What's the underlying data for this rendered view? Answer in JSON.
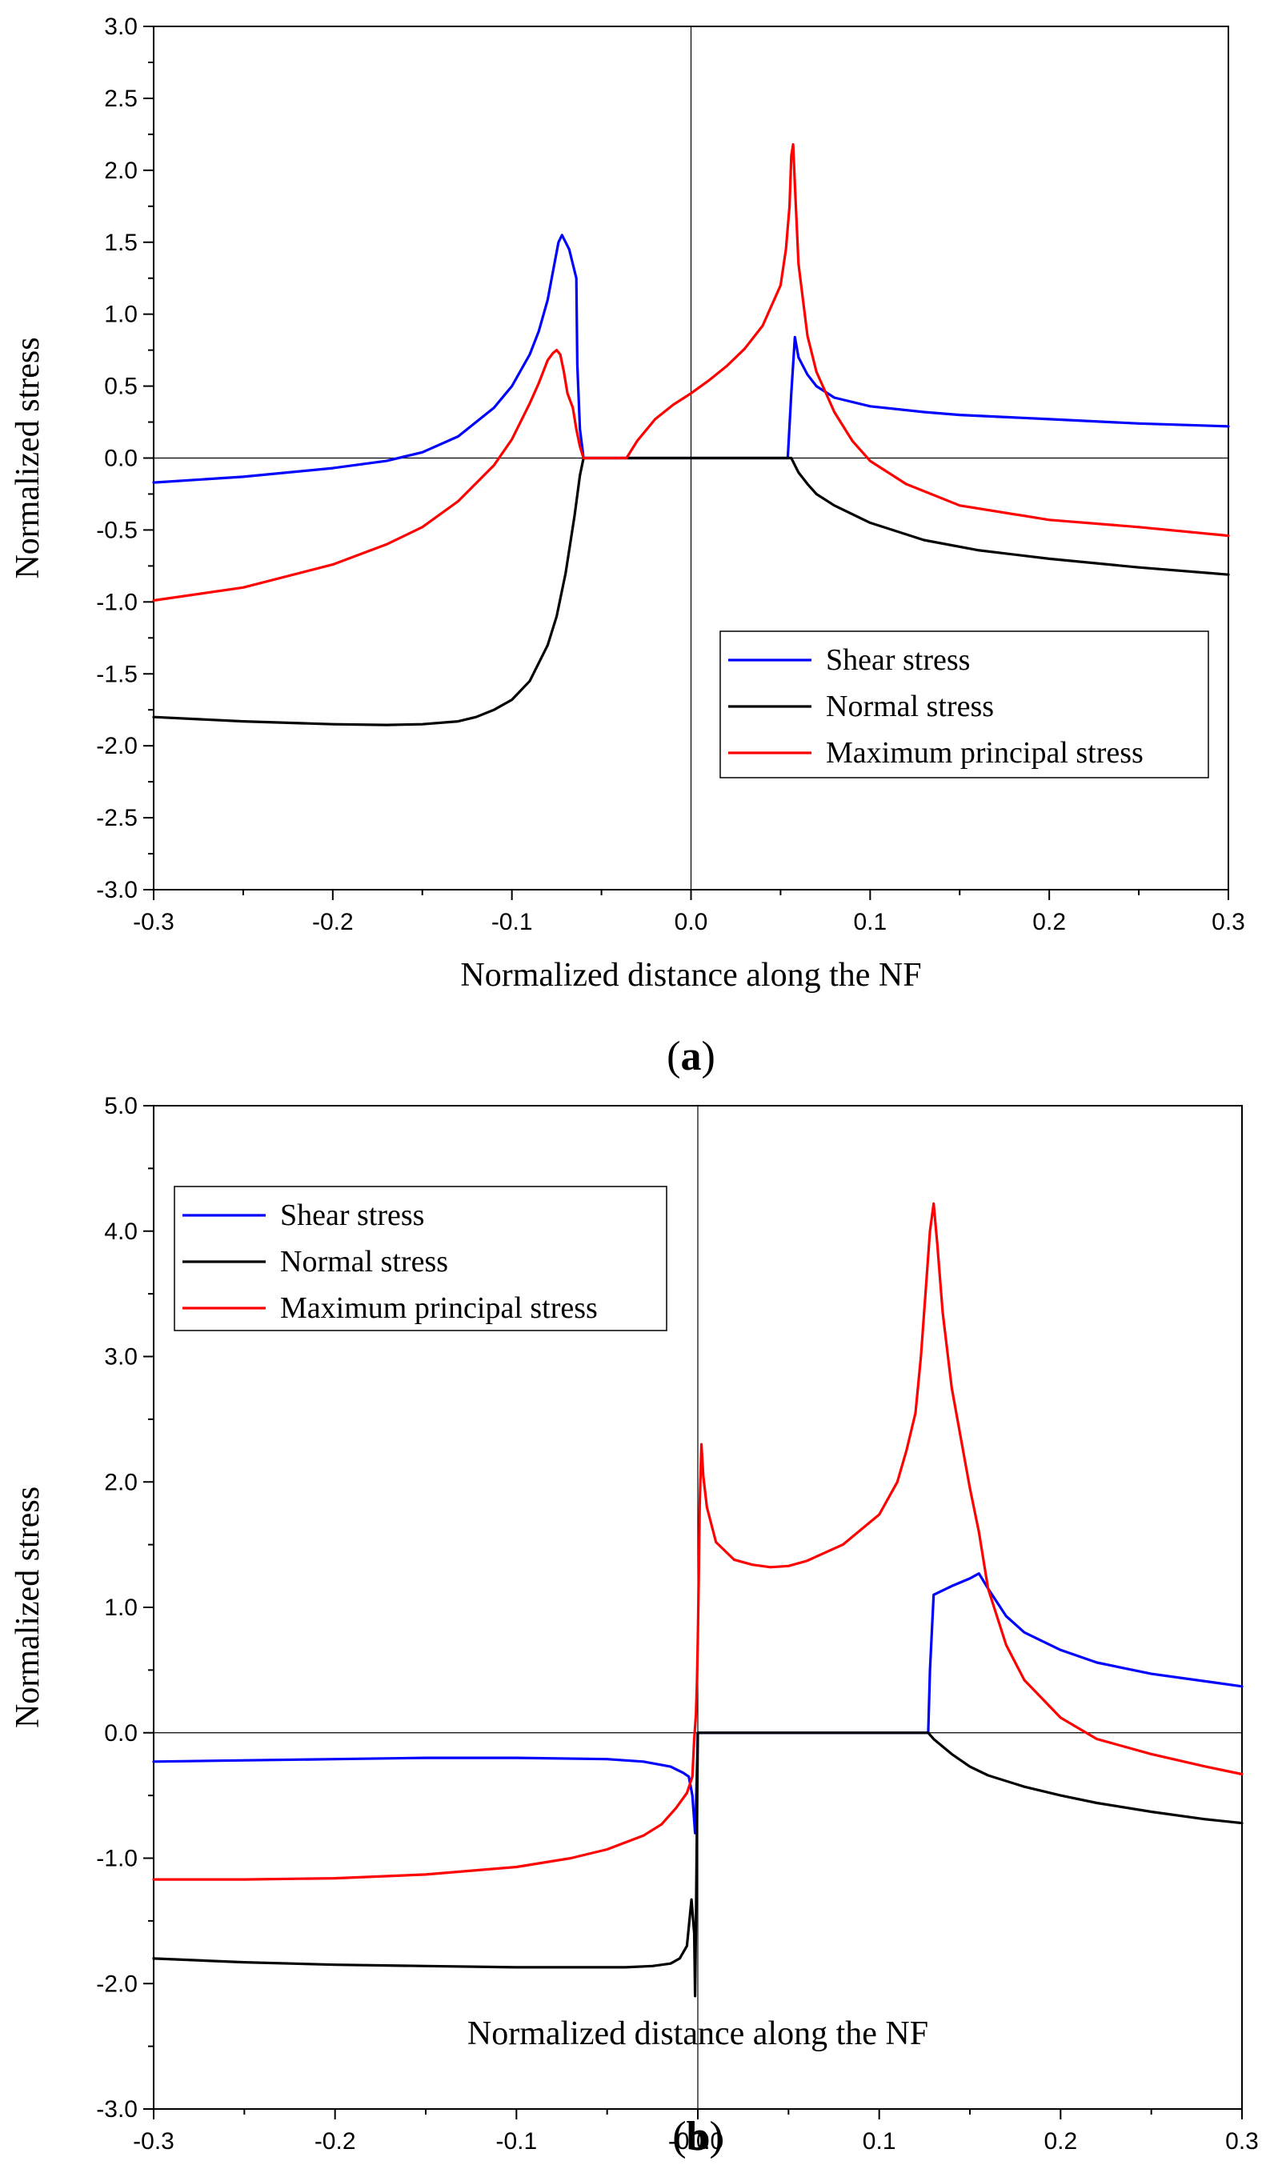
{
  "chart_data": [
    {
      "type": "line",
      "panel_label": "a",
      "xlabel": "Normalized distance along the NF",
      "ylabel": "Normalized stress",
      "xlim": [
        -0.3,
        0.3
      ],
      "ylim": [
        -3.0,
        3.0
      ],
      "xticks": [
        -0.3,
        -0.2,
        -0.1,
        0.0,
        0.1,
        0.2,
        0.3
      ],
      "xtick_labels": [
        "-0.3",
        "-0.2",
        "-0.1",
        "0.0",
        "0.1",
        "0.2",
        "0.3"
      ],
      "yticks": [
        -3.0,
        -2.5,
        -2.0,
        -1.5,
        -1.0,
        -0.5,
        0.0,
        0.5,
        1.0,
        1.5,
        2.0,
        2.5,
        3.0
      ],
      "ytick_labels": [
        "-3.0",
        "-2.5",
        "-2.0",
        "-1.5",
        "-1.0",
        "-0.5",
        "0.0",
        "0.5",
        "1.0",
        "1.5",
        "2.0",
        "2.5",
        "3.0"
      ],
      "reference_lines": {
        "x": 0.0,
        "y": 0.0
      },
      "legend_position": "lower-right",
      "series": [
        {
          "name": "Shear stress",
          "color": "#0000ff",
          "x": [
            -0.3,
            -0.25,
            -0.2,
            -0.17,
            -0.15,
            -0.13,
            -0.11,
            -0.1,
            -0.09,
            -0.085,
            -0.08,
            -0.077,
            -0.074,
            -0.072,
            -0.068,
            -0.064,
            -0.0635,
            -0.062,
            -0.06,
            0.0,
            0.054,
            0.056,
            0.058,
            0.06,
            0.065,
            0.07,
            0.08,
            0.1,
            0.13,
            0.15,
            0.2,
            0.25,
            0.3
          ],
          "y": [
            -0.17,
            -0.13,
            -0.07,
            -0.02,
            0.04,
            0.15,
            0.35,
            0.5,
            0.72,
            0.88,
            1.1,
            1.3,
            1.5,
            1.55,
            1.45,
            1.25,
            0.65,
            0.2,
            0.0,
            0.0,
            0.0,
            0.45,
            0.84,
            0.7,
            0.58,
            0.5,
            0.42,
            0.36,
            0.32,
            0.3,
            0.27,
            0.24,
            0.22
          ]
        },
        {
          "name": "Normal stress",
          "color": "#000000",
          "x": [
            -0.3,
            -0.25,
            -0.2,
            -0.17,
            -0.15,
            -0.13,
            -0.12,
            -0.11,
            -0.1,
            -0.09,
            -0.08,
            -0.075,
            -0.07,
            -0.065,
            -0.062,
            -0.06,
            0.0,
            0.054,
            0.056,
            0.06,
            0.065,
            0.07,
            0.08,
            0.1,
            0.13,
            0.16,
            0.2,
            0.25,
            0.3
          ],
          "y": [
            -1.8,
            -1.83,
            -1.85,
            -1.855,
            -1.85,
            -1.83,
            -1.8,
            -1.75,
            -1.68,
            -1.55,
            -1.3,
            -1.1,
            -0.8,
            -0.4,
            -0.12,
            0.0,
            0.0,
            0.0,
            0.0,
            -0.1,
            -0.18,
            -0.25,
            -0.33,
            -0.45,
            -0.57,
            -0.64,
            -0.7,
            -0.76,
            -0.81
          ]
        },
        {
          "name": "Maximum principal stress",
          "color": "#ff0000",
          "x": [
            -0.3,
            -0.25,
            -0.2,
            -0.17,
            -0.15,
            -0.13,
            -0.11,
            -0.1,
            -0.09,
            -0.085,
            -0.08,
            -0.077,
            -0.075,
            -0.073,
            -0.071,
            -0.069,
            -0.066,
            -0.064,
            -0.062,
            -0.06,
            -0.05,
            -0.04,
            -0.036,
            -0.03,
            -0.02,
            -0.01,
            0.0,
            0.01,
            0.02,
            0.03,
            0.04,
            0.05,
            0.053,
            0.055,
            0.056,
            0.057,
            0.058,
            0.06,
            0.065,
            0.07,
            0.08,
            0.09,
            0.1,
            0.12,
            0.15,
            0.2,
            0.25,
            0.3
          ],
          "y": [
            -0.99,
            -0.9,
            -0.74,
            -0.6,
            -0.48,
            -0.3,
            -0.05,
            0.13,
            0.38,
            0.52,
            0.68,
            0.73,
            0.75,
            0.72,
            0.6,
            0.45,
            0.35,
            0.2,
            0.08,
            0.0,
            0.0,
            0.0,
            0.0,
            0.12,
            0.27,
            0.37,
            0.45,
            0.54,
            0.64,
            0.76,
            0.92,
            1.2,
            1.45,
            1.75,
            2.1,
            2.18,
            1.9,
            1.35,
            0.85,
            0.6,
            0.32,
            0.12,
            -0.02,
            -0.18,
            -0.33,
            -0.43,
            -0.48,
            -0.54
          ]
        }
      ]
    },
    {
      "type": "line",
      "panel_label": "b",
      "xlabel": "Normalized distance along the NF",
      "ylabel": "Normalized stress",
      "xlim": [
        -0.3,
        0.3
      ],
      "ylim": [
        -3.0,
        5.0
      ],
      "xticks": [
        -0.3,
        -0.2,
        -0.1,
        0.0,
        0.1,
        0.2,
        0.3
      ],
      "xtick_labels": [
        "-0.3",
        "-0.2",
        "-0.1",
        "-0.0",
        "0.0",
        "0.1",
        "0.2",
        "0.3"
      ],
      "xtick_label_positions": [
        -0.3,
        -0.2,
        -0.1,
        -0.005,
        0.005,
        0.1,
        0.2,
        0.3
      ],
      "yticks": [
        -3.0,
        -2.0,
        -1.0,
        0.0,
        1.0,
        2.0,
        3.0,
        4.0,
        5.0
      ],
      "ytick_labels": [
        "-3.0",
        "-2.0",
        "-1.0",
        "0.0",
        "1.0",
        "2.0",
        "3.0",
        "4.0",
        "5.0"
      ],
      "reference_lines": {
        "x": 0.0,
        "y": 0.0
      },
      "legend_position": "top-left",
      "series": [
        {
          "name": "Shear stress",
          "color": "#0000ff",
          "x": [
            -0.3,
            -0.2,
            -0.15,
            -0.1,
            -0.05,
            -0.03,
            -0.015,
            -0.008,
            -0.005,
            -0.003,
            -0.002,
            -0.0015,
            -0.001,
            0.0,
            0.002,
            0.05,
            0.1,
            0.127,
            0.128,
            0.13,
            0.14,
            0.15,
            0.155,
            0.16,
            0.17,
            0.18,
            0.2,
            0.22,
            0.25,
            0.28,
            0.3
          ],
          "y": [
            -0.23,
            -0.21,
            -0.2,
            -0.2,
            -0.21,
            -0.23,
            -0.27,
            -0.32,
            -0.35,
            -0.5,
            -0.7,
            -0.8,
            -0.6,
            0.0,
            0.0,
            0.0,
            0.0,
            0.0,
            0.5,
            1.1,
            1.17,
            1.23,
            1.27,
            1.15,
            0.93,
            0.8,
            0.66,
            0.56,
            0.47,
            0.41,
            0.37
          ]
        },
        {
          "name": "Normal stress",
          "color": "#000000",
          "x": [
            -0.3,
            -0.25,
            -0.2,
            -0.15,
            -0.1,
            -0.07,
            -0.04,
            -0.025,
            -0.015,
            -0.01,
            -0.006,
            -0.005,
            -0.0035,
            -0.002,
            -0.0015,
            -0.001,
            0.0,
            0.002,
            0.05,
            0.1,
            0.127,
            0.13,
            0.14,
            0.15,
            0.16,
            0.18,
            0.2,
            0.22,
            0.25,
            0.28,
            0.3
          ],
          "y": [
            -1.8,
            -1.83,
            -1.85,
            -1.86,
            -1.87,
            -1.87,
            -1.87,
            -1.86,
            -1.84,
            -1.8,
            -1.7,
            -1.55,
            -1.33,
            -1.6,
            -2.1,
            -1.5,
            0.0,
            0.0,
            0.0,
            0.0,
            0.0,
            -0.05,
            -0.17,
            -0.27,
            -0.34,
            -0.43,
            -0.5,
            -0.56,
            -0.63,
            -0.69,
            -0.72
          ]
        },
        {
          "name": "Maximum principal stress",
          "color": "#ff0000",
          "x": [
            -0.3,
            -0.25,
            -0.2,
            -0.15,
            -0.1,
            -0.07,
            -0.05,
            -0.03,
            -0.02,
            -0.012,
            -0.006,
            -0.003,
            -0.002,
            -0.001,
            -0.0005,
            0.0,
            0.0005,
            0.001,
            0.002,
            0.003,
            0.005,
            0.01,
            0.02,
            0.03,
            0.04,
            0.05,
            0.06,
            0.08,
            0.1,
            0.11,
            0.115,
            0.12,
            0.123,
            0.126,
            0.128,
            0.13,
            0.132,
            0.135,
            0.14,
            0.15,
            0.155,
            0.16,
            0.17,
            0.18,
            0.2,
            0.22,
            0.25,
            0.28,
            0.3
          ],
          "y": [
            -1.17,
            -1.17,
            -1.16,
            -1.13,
            -1.07,
            -1.0,
            -0.93,
            -0.82,
            -0.73,
            -0.6,
            -0.48,
            -0.35,
            -0.05,
            0.15,
            0.4,
            0.75,
            1.2,
            1.8,
            2.3,
            2.05,
            1.8,
            1.52,
            1.38,
            1.34,
            1.32,
            1.33,
            1.37,
            1.5,
            1.74,
            2.0,
            2.25,
            2.55,
            3.0,
            3.6,
            4.0,
            4.22,
            3.9,
            3.35,
            2.75,
            1.95,
            1.6,
            1.15,
            0.7,
            0.42,
            0.12,
            -0.05,
            -0.17,
            -0.27,
            -0.33
          ]
        }
      ]
    }
  ]
}
